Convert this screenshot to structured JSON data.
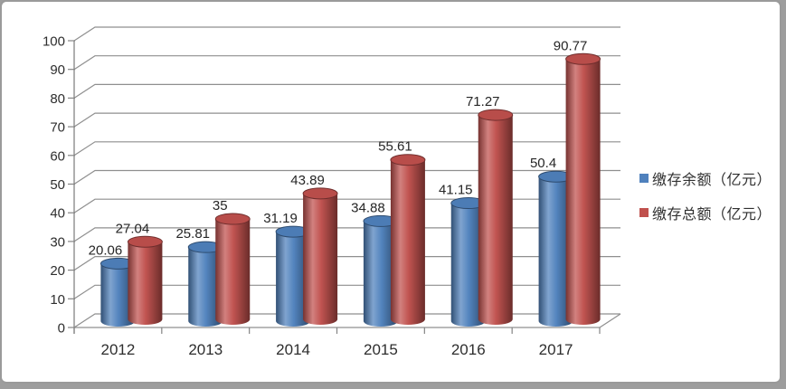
{
  "window": {
    "background": "#ffffff",
    "frame_border_color": "#9a9a9a",
    "outer_background": "#9d9d9d"
  },
  "chart_data": {
    "type": "bar",
    "style": "3d-cylinder",
    "title": "",
    "xlabel": "",
    "ylabel": "",
    "categories": [
      "2012",
      "2013",
      "2014",
      "2015",
      "2016",
      "2017"
    ],
    "series": [
      {
        "name": "缴存余额（亿元）",
        "color": "#4F81BD",
        "values": [
          20.06,
          25.81,
          31.19,
          34.88,
          41.15,
          50.4
        ]
      },
      {
        "name": "缴存总额（亿元）",
        "color": "#C0504D",
        "values": [
          27.04,
          35,
          43.89,
          55.61,
          71.27,
          90.77
        ]
      }
    ],
    "ylim": [
      0,
      100
    ],
    "yticks": [
      0,
      10,
      20,
      30,
      40,
      50,
      60,
      70,
      80,
      90,
      100
    ],
    "grid": true,
    "data_labels": true,
    "legend_position": "right",
    "gridline_color": "#8f8f8f",
    "axis_color": "#848484",
    "tick_label_color": "#2e2e2e",
    "value_label_color": "#262626"
  }
}
